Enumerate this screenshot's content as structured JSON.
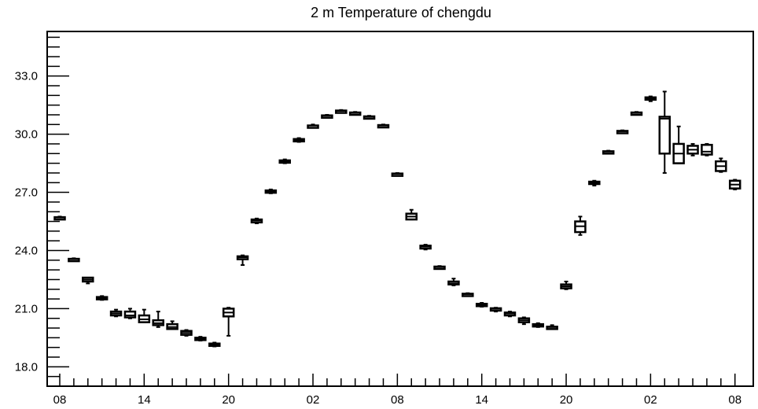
{
  "chart_data": {
    "type": "box",
    "title": "2 m Temperature of chengdu",
    "xlabel": "",
    "ylabel": "",
    "ylim": [
      17.0,
      35.3
    ],
    "y_ticks": [
      "18.0",
      "21.0",
      "24.0",
      "27.0",
      "30.0",
      "33.0"
    ],
    "x_ticks": [
      "08",
      "14",
      "20",
      "02",
      "08",
      "14",
      "20",
      "02",
      "08"
    ],
    "grid": false,
    "boxes": [
      {
        "x": 0,
        "min": 25.65,
        "q1": 25.68,
        "median": 25.7,
        "q3": 25.72,
        "max": 25.75
      },
      {
        "x": 1,
        "min": 23.5,
        "q1": 23.53,
        "median": 23.55,
        "q3": 23.57,
        "max": 23.6
      },
      {
        "x": 2,
        "min": 22.3,
        "q1": 22.4,
        "median": 22.5,
        "q3": 22.6,
        "max": 22.6
      },
      {
        "x": 3,
        "min": 21.45,
        "q1": 21.5,
        "median": 21.55,
        "q3": 21.6,
        "max": 21.65
      },
      {
        "x": 4,
        "min": 20.6,
        "q1": 20.65,
        "median": 20.75,
        "q3": 20.85,
        "max": 20.95
      },
      {
        "x": 5,
        "min": 20.5,
        "q1": 20.55,
        "median": 20.65,
        "q3": 20.85,
        "max": 21.0
      },
      {
        "x": 6,
        "min": 20.3,
        "q1": 20.3,
        "median": 20.45,
        "q3": 20.65,
        "max": 20.95
      },
      {
        "x": 7,
        "min": 20.05,
        "q1": 20.15,
        "median": 20.25,
        "q3": 20.4,
        "max": 20.85
      },
      {
        "x": 8,
        "min": 19.95,
        "q1": 19.95,
        "median": 20.05,
        "q3": 20.2,
        "max": 20.35
      },
      {
        "x": 9,
        "min": 19.6,
        "q1": 19.65,
        "median": 19.75,
        "q3": 19.85,
        "max": 19.9
      },
      {
        "x": 10,
        "min": 19.35,
        "q1": 19.4,
        "median": 19.45,
        "q3": 19.5,
        "max": 19.55
      },
      {
        "x": 11,
        "min": 19.05,
        "q1": 19.1,
        "median": 19.15,
        "q3": 19.2,
        "max": 19.25
      },
      {
        "x": 12,
        "min": 19.6,
        "q1": 20.6,
        "median": 20.8,
        "q3": 21.0,
        "max": 21.05
      },
      {
        "x": 13,
        "min": 23.25,
        "q1": 23.55,
        "median": 23.65,
        "q3": 23.7,
        "max": 23.75
      },
      {
        "x": 14,
        "min": 25.4,
        "q1": 25.45,
        "median": 25.55,
        "q3": 25.6,
        "max": 25.65
      },
      {
        "x": 15,
        "min": 26.95,
        "q1": 27.0,
        "median": 27.05,
        "q3": 27.1,
        "max": 27.15
      },
      {
        "x": 16,
        "min": 28.5,
        "q1": 28.55,
        "median": 28.6,
        "q3": 28.65,
        "max": 28.7
      },
      {
        "x": 17,
        "min": 29.6,
        "q1": 29.65,
        "median": 29.7,
        "q3": 29.75,
        "max": 29.8
      },
      {
        "x": 18,
        "min": 30.35,
        "q1": 30.4,
        "median": 30.45,
        "q3": 30.45,
        "max": 30.5
      },
      {
        "x": 19,
        "min": 30.9,
        "q1": 30.92,
        "median": 30.95,
        "q3": 30.97,
        "max": 31.0
      },
      {
        "x": 20,
        "min": 31.1,
        "q1": 31.15,
        "median": 31.2,
        "q3": 31.22,
        "max": 31.25
      },
      {
        "x": 21,
        "min": 31.05,
        "q1": 31.08,
        "median": 31.1,
        "q3": 31.12,
        "max": 31.15
      },
      {
        "x": 22,
        "min": 30.8,
        "q1": 30.85,
        "median": 30.9,
        "q3": 30.92,
        "max": 30.95
      },
      {
        "x": 23,
        "min": 30.4,
        "q1": 30.42,
        "median": 30.45,
        "q3": 30.47,
        "max": 30.5
      },
      {
        "x": 24,
        "min": 27.9,
        "q1": 27.93,
        "median": 27.95,
        "q3": 27.97,
        "max": 28.0
      },
      {
        "x": 25,
        "min": 25.6,
        "q1": 25.6,
        "median": 25.75,
        "q3": 25.9,
        "max": 26.1
      },
      {
        "x": 26,
        "min": 24.05,
        "q1": 24.1,
        "median": 24.2,
        "q3": 24.25,
        "max": 24.3
      },
      {
        "x": 27,
        "min": 23.1,
        "q1": 23.13,
        "median": 23.15,
        "q3": 23.17,
        "max": 23.2
      },
      {
        "x": 28,
        "min": 22.2,
        "q1": 22.25,
        "median": 22.3,
        "q3": 22.4,
        "max": 22.55
      },
      {
        "x": 29,
        "min": 21.7,
        "q1": 21.73,
        "median": 21.75,
        "q3": 21.77,
        "max": 21.8
      },
      {
        "x": 30,
        "min": 21.1,
        "q1": 21.13,
        "median": 21.2,
        "q3": 21.25,
        "max": 21.3
      },
      {
        "x": 31,
        "min": 20.85,
        "q1": 20.95,
        "median": 21.0,
        "q3": 21.02,
        "max": 21.05
      },
      {
        "x": 32,
        "min": 20.6,
        "q1": 20.65,
        "median": 20.75,
        "q3": 20.8,
        "max": 20.85
      },
      {
        "x": 33,
        "min": 20.2,
        "q1": 20.3,
        "median": 20.4,
        "q3": 20.5,
        "max": 20.55
      },
      {
        "x": 34,
        "min": 20.05,
        "q1": 20.1,
        "median": 20.15,
        "q3": 20.2,
        "max": 20.25
      },
      {
        "x": 35,
        "min": 20.0,
        "q1": 20.03,
        "median": 20.05,
        "q3": 20.07,
        "max": 20.15
      },
      {
        "x": 36,
        "min": 22.0,
        "q1": 22.05,
        "median": 22.15,
        "q3": 22.25,
        "max": 22.4
      },
      {
        "x": 37,
        "min": 24.8,
        "q1": 24.95,
        "median": 25.25,
        "q3": 25.5,
        "max": 25.75
      },
      {
        "x": 38,
        "min": 27.35,
        "q1": 27.45,
        "median": 27.5,
        "q3": 27.55,
        "max": 27.6
      },
      {
        "x": 39,
        "min": 29.05,
        "q1": 29.08,
        "median": 29.1,
        "q3": 29.12,
        "max": 29.15
      },
      {
        "x": 40,
        "min": 30.1,
        "q1": 30.13,
        "median": 30.15,
        "q3": 30.17,
        "max": 30.2
      },
      {
        "x": 41,
        "min": 31.05,
        "q1": 31.08,
        "median": 31.1,
        "q3": 31.12,
        "max": 31.15
      },
      {
        "x": 42,
        "min": 31.7,
        "q1": 31.8,
        "median": 31.85,
        "q3": 31.9,
        "max": 31.95
      },
      {
        "x": 43,
        "min": 28.0,
        "q1": 29.0,
        "median": 30.8,
        "q3": 30.9,
        "max": 32.2
      },
      {
        "x": 44,
        "min": 28.5,
        "q1": 28.5,
        "median": 29.0,
        "q3": 29.5,
        "max": 30.4
      },
      {
        "x": 45,
        "min": 28.9,
        "q1": 29.0,
        "median": 29.2,
        "q3": 29.4,
        "max": 29.5
      },
      {
        "x": 46,
        "min": 28.9,
        "q1": 28.95,
        "median": 29.1,
        "q3": 29.45,
        "max": 29.5
      },
      {
        "x": 47,
        "min": 28.05,
        "q1": 28.1,
        "median": 28.35,
        "q3": 28.6,
        "max": 28.75
      },
      {
        "x": 48,
        "min": 27.15,
        "q1": 27.2,
        "median": 27.4,
        "q3": 27.6,
        "max": 27.65
      }
    ]
  }
}
